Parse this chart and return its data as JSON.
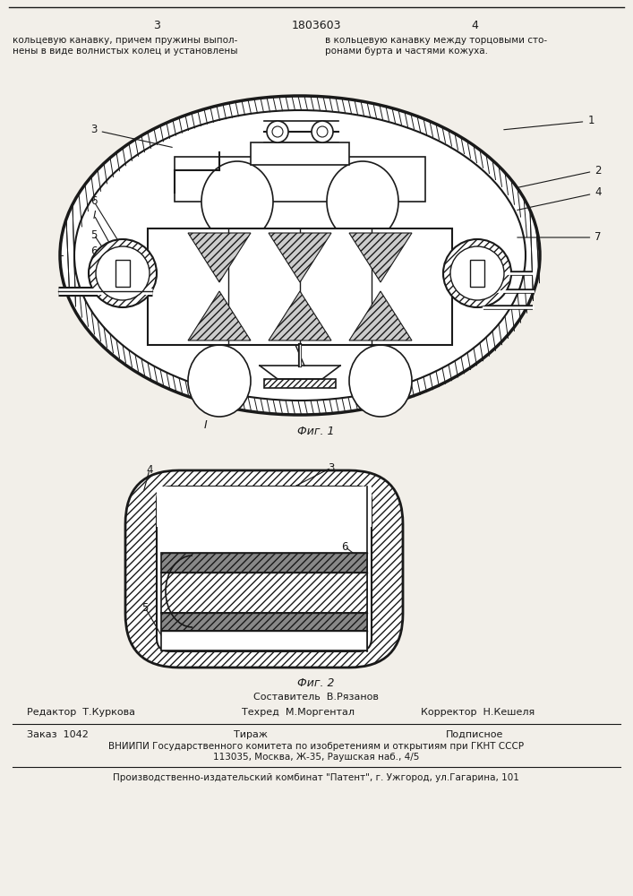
{
  "page_number_left": "3",
  "page_number_right": "4",
  "patent_number": "1803603",
  "top_text_left": "кольцевую канавку, причем пружины выпол-\nнены в виде волнистых колец и установлены",
  "top_text_right": "в кольцевую канавку между торцовыми сто-\nронами бурта и частями кожуха.",
  "fig1_caption": "Фиг. 1",
  "fig2_caption": "Фиг. 2",
  "editor_label": "Редактор  Т.Куркова",
  "composer_label": "Составитель  В.Рязанов",
  "techred_label": "Техред  М.Моргентал",
  "corrector_label": "Корректор  Н.Кешеля",
  "order_label": "Заказ  1042",
  "print_run_label": "Тираж",
  "subscription_label": "Подписное",
  "vniiipi_line": "ВНИИПИ Государственного комитета по изобретениям и открытиям при ГКНТ СССР",
  "address_line": "113035, Москва, Ж-35, Раушская наб., 4/5",
  "publisher_line": "Производственно-издательский комбинат \"Патент\", г. Ужгород, ул.Гагарина, 101",
  "bg_color": "#f2efe9",
  "line_color": "#1a1a1a",
  "text_color": "#1a1a1a"
}
